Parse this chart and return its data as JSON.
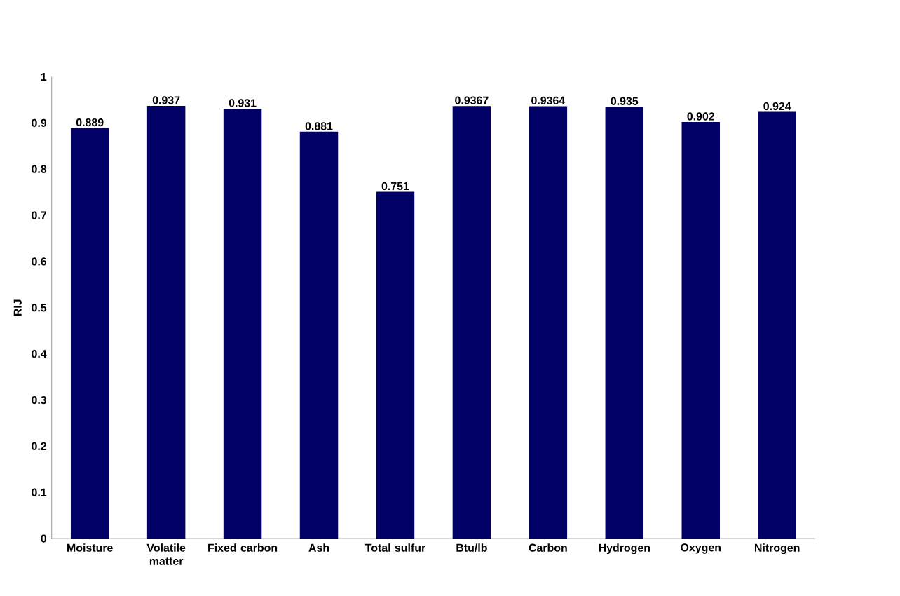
{
  "chart_data": {
    "type": "bar",
    "ylabel": "RIJ",
    "categories": [
      "Moisture",
      "Volatile matter",
      "Fixed carbon",
      "Ash",
      "Total sulfur",
      "Btu/lb",
      "Carbon",
      "Hydrogen",
      "Oxygen",
      "Nitrogen"
    ],
    "values": [
      0.889,
      0.937,
      0.931,
      0.881,
      0.751,
      0.9367,
      0.9364,
      0.935,
      0.902,
      0.924
    ],
    "color": "#000066",
    "data_labels": true,
    "grid": false,
    "ylim": [
      0,
      1
    ],
    "yticks": [
      0,
      0.1,
      0.2,
      0.3,
      0.4,
      0.5,
      0.6,
      0.7,
      0.8,
      0.9,
      1
    ]
  }
}
